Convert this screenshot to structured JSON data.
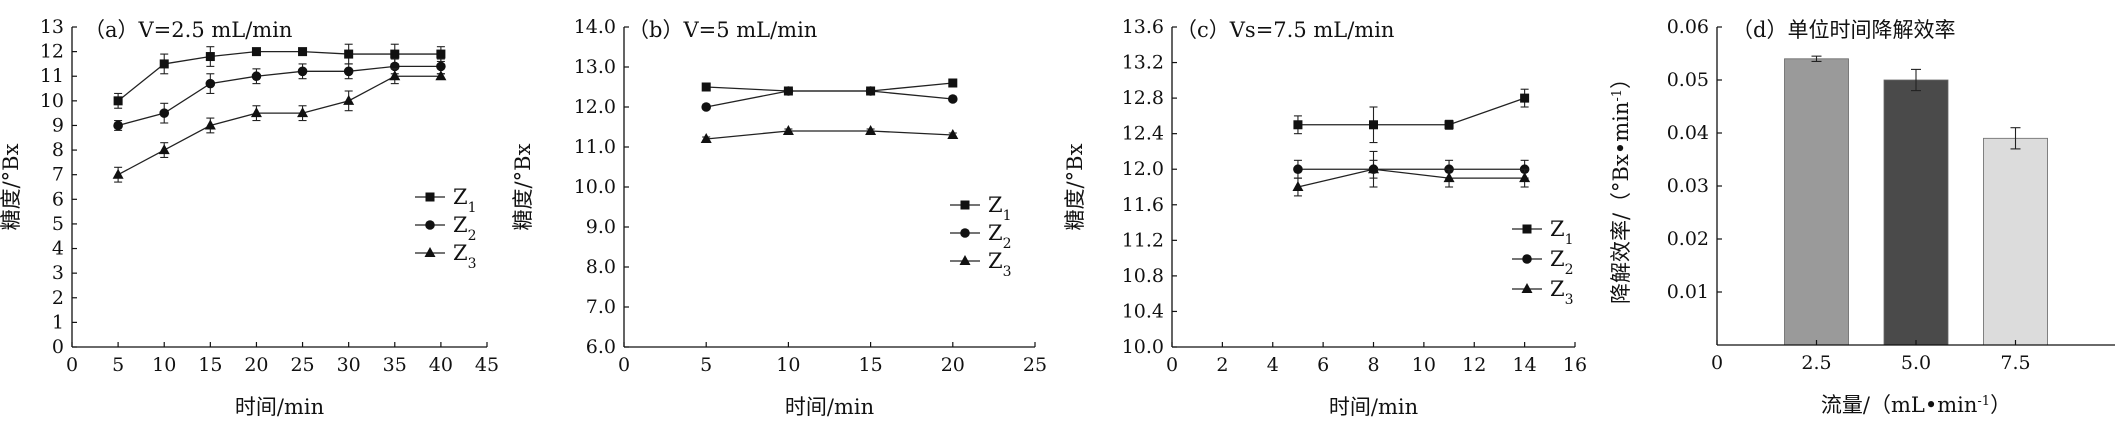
{
  "chart_data": [
    {
      "id": "a",
      "type": "line",
      "title": "（a）V=2.5 mL/min",
      "xlabel": "时间/min",
      "ylabel": "糖度/°Bx",
      "xlim": [
        0,
        45
      ],
      "ylim": [
        0,
        13
      ],
      "xticks": [
        0,
        5,
        10,
        15,
        20,
        25,
        30,
        35,
        40,
        45
      ],
      "yticks": [
        0,
        1,
        2,
        3,
        4,
        5,
        6,
        7,
        8,
        9,
        10,
        11,
        12,
        13
      ],
      "tick_decimals": 0,
      "legend_position": "right",
      "series": [
        {
          "name": "Z",
          "sub": "1",
          "marker": "square",
          "x": [
            5,
            10,
            15,
            20,
            25,
            30,
            35,
            40
          ],
          "y": [
            10.0,
            11.5,
            11.8,
            12.0,
            12.0,
            11.9,
            11.9,
            11.9
          ],
          "err": [
            0.3,
            0.4,
            0.4,
            0.1,
            0.1,
            0.4,
            0.4,
            0.3
          ]
        },
        {
          "name": "Z",
          "sub": "2",
          "marker": "circle",
          "x": [
            5,
            10,
            15,
            20,
            25,
            30,
            35,
            40
          ],
          "y": [
            9.0,
            9.5,
            10.7,
            11.0,
            11.2,
            11.2,
            11.4,
            11.4
          ],
          "err": [
            0.2,
            0.4,
            0.4,
            0.3,
            0.3,
            0.3,
            0.3,
            0.3
          ]
        },
        {
          "name": "Z",
          "sub": "3",
          "marker": "triangle",
          "x": [
            5,
            10,
            15,
            20,
            25,
            30,
            35,
            40
          ],
          "y": [
            7.0,
            8.0,
            9.0,
            9.5,
            9.5,
            10.0,
            11.0,
            11.0
          ],
          "err": [
            0.3,
            0.3,
            0.3,
            0.3,
            0.3,
            0.4,
            0.3,
            0.1
          ]
        }
      ]
    },
    {
      "id": "b",
      "type": "line",
      "title": "（b）V=5 mL/min",
      "xlabel": "时间/min",
      "ylabel": "糖度/°Bx",
      "xlim": [
        0,
        25
      ],
      "ylim": [
        6.0,
        14.0
      ],
      "xticks": [
        0,
        5,
        10,
        15,
        20,
        25
      ],
      "yticks": [
        6.0,
        7.0,
        8.0,
        9.0,
        10.0,
        11.0,
        12.0,
        13.0,
        14.0
      ],
      "tick_decimals": 1,
      "legend_position": "right",
      "series": [
        {
          "name": "Z",
          "sub": "1",
          "marker": "square",
          "x": [
            5,
            10,
            15,
            20
          ],
          "y": [
            12.5,
            12.4,
            12.4,
            12.6
          ],
          "err": [
            0.05,
            0.05,
            0.05,
            0.05
          ]
        },
        {
          "name": "Z",
          "sub": "2",
          "marker": "circle",
          "x": [
            5,
            10,
            15,
            20
          ],
          "y": [
            12.0,
            12.4,
            12.4,
            12.2
          ],
          "err": [
            0.05,
            0.05,
            0.05,
            0.05
          ]
        },
        {
          "name": "Z",
          "sub": "3",
          "marker": "triangle",
          "x": [
            5,
            10,
            15,
            20
          ],
          "y": [
            11.2,
            11.4,
            11.4,
            11.3
          ],
          "err": [
            0.05,
            0.05,
            0.05,
            0.05
          ]
        }
      ]
    },
    {
      "id": "c",
      "type": "line",
      "title": "（c）Vs=7.5 mL/min",
      "xlabel": "时间/min",
      "ylabel": "糖度/°Bx",
      "xlim": [
        0,
        16
      ],
      "ylim": [
        10.0,
        13.6
      ],
      "xticks": [
        0,
        2,
        4,
        6,
        8,
        10,
        12,
        14,
        16
      ],
      "yticks": [
        10.0,
        10.4,
        10.8,
        11.2,
        11.6,
        12.0,
        12.4,
        12.8,
        13.2,
        13.6
      ],
      "tick_decimals": 1,
      "legend_position": "bottom-right",
      "series": [
        {
          "name": "Z",
          "sub": "1",
          "marker": "square",
          "x": [
            5,
            8,
            11,
            14
          ],
          "y": [
            12.5,
            12.5,
            12.5,
            12.8
          ],
          "err": [
            0.1,
            0.2,
            0.05,
            0.1
          ]
        },
        {
          "name": "Z",
          "sub": "2",
          "marker": "circle",
          "x": [
            5,
            8,
            11,
            14
          ],
          "y": [
            12.0,
            12.0,
            12.0,
            12.0
          ],
          "err": [
            0.1,
            0.1,
            0.1,
            0.1
          ]
        },
        {
          "name": "Z",
          "sub": "3",
          "marker": "triangle",
          "x": [
            5,
            8,
            11,
            14
          ],
          "y": [
            11.8,
            12.0,
            11.9,
            11.9
          ],
          "err": [
            0.1,
            0.2,
            0.1,
            0.1
          ]
        }
      ]
    },
    {
      "id": "d",
      "type": "bar",
      "title": "（d）单位时间降解效率",
      "xlabel": "流量/（mL•min-1）",
      "ylabel": "降解效率/（°Bx•min-1）",
      "xlim": [
        0,
        10
      ],
      "ylim": [
        0,
        0.06
      ],
      "xticks": [
        0,
        2.5,
        5.0,
        7.5
      ],
      "xtick_labels": [
        "0",
        "2.5",
        "5.0",
        "7.5"
      ],
      "yticks": [
        0.01,
        0.02,
        0.03,
        0.04,
        0.05,
        0.06
      ],
      "tick_decimals": 2,
      "categories": [
        "2.5",
        "5.0",
        "7.5"
      ],
      "x": [
        2.5,
        5.0,
        7.5
      ],
      "values": [
        0.054,
        0.05,
        0.039
      ],
      "err": [
        0.0005,
        0.002,
        0.002
      ],
      "colors": [
        "#9a9a9a",
        "#4a4a4a",
        "#dcdcdc"
      ]
    }
  ]
}
